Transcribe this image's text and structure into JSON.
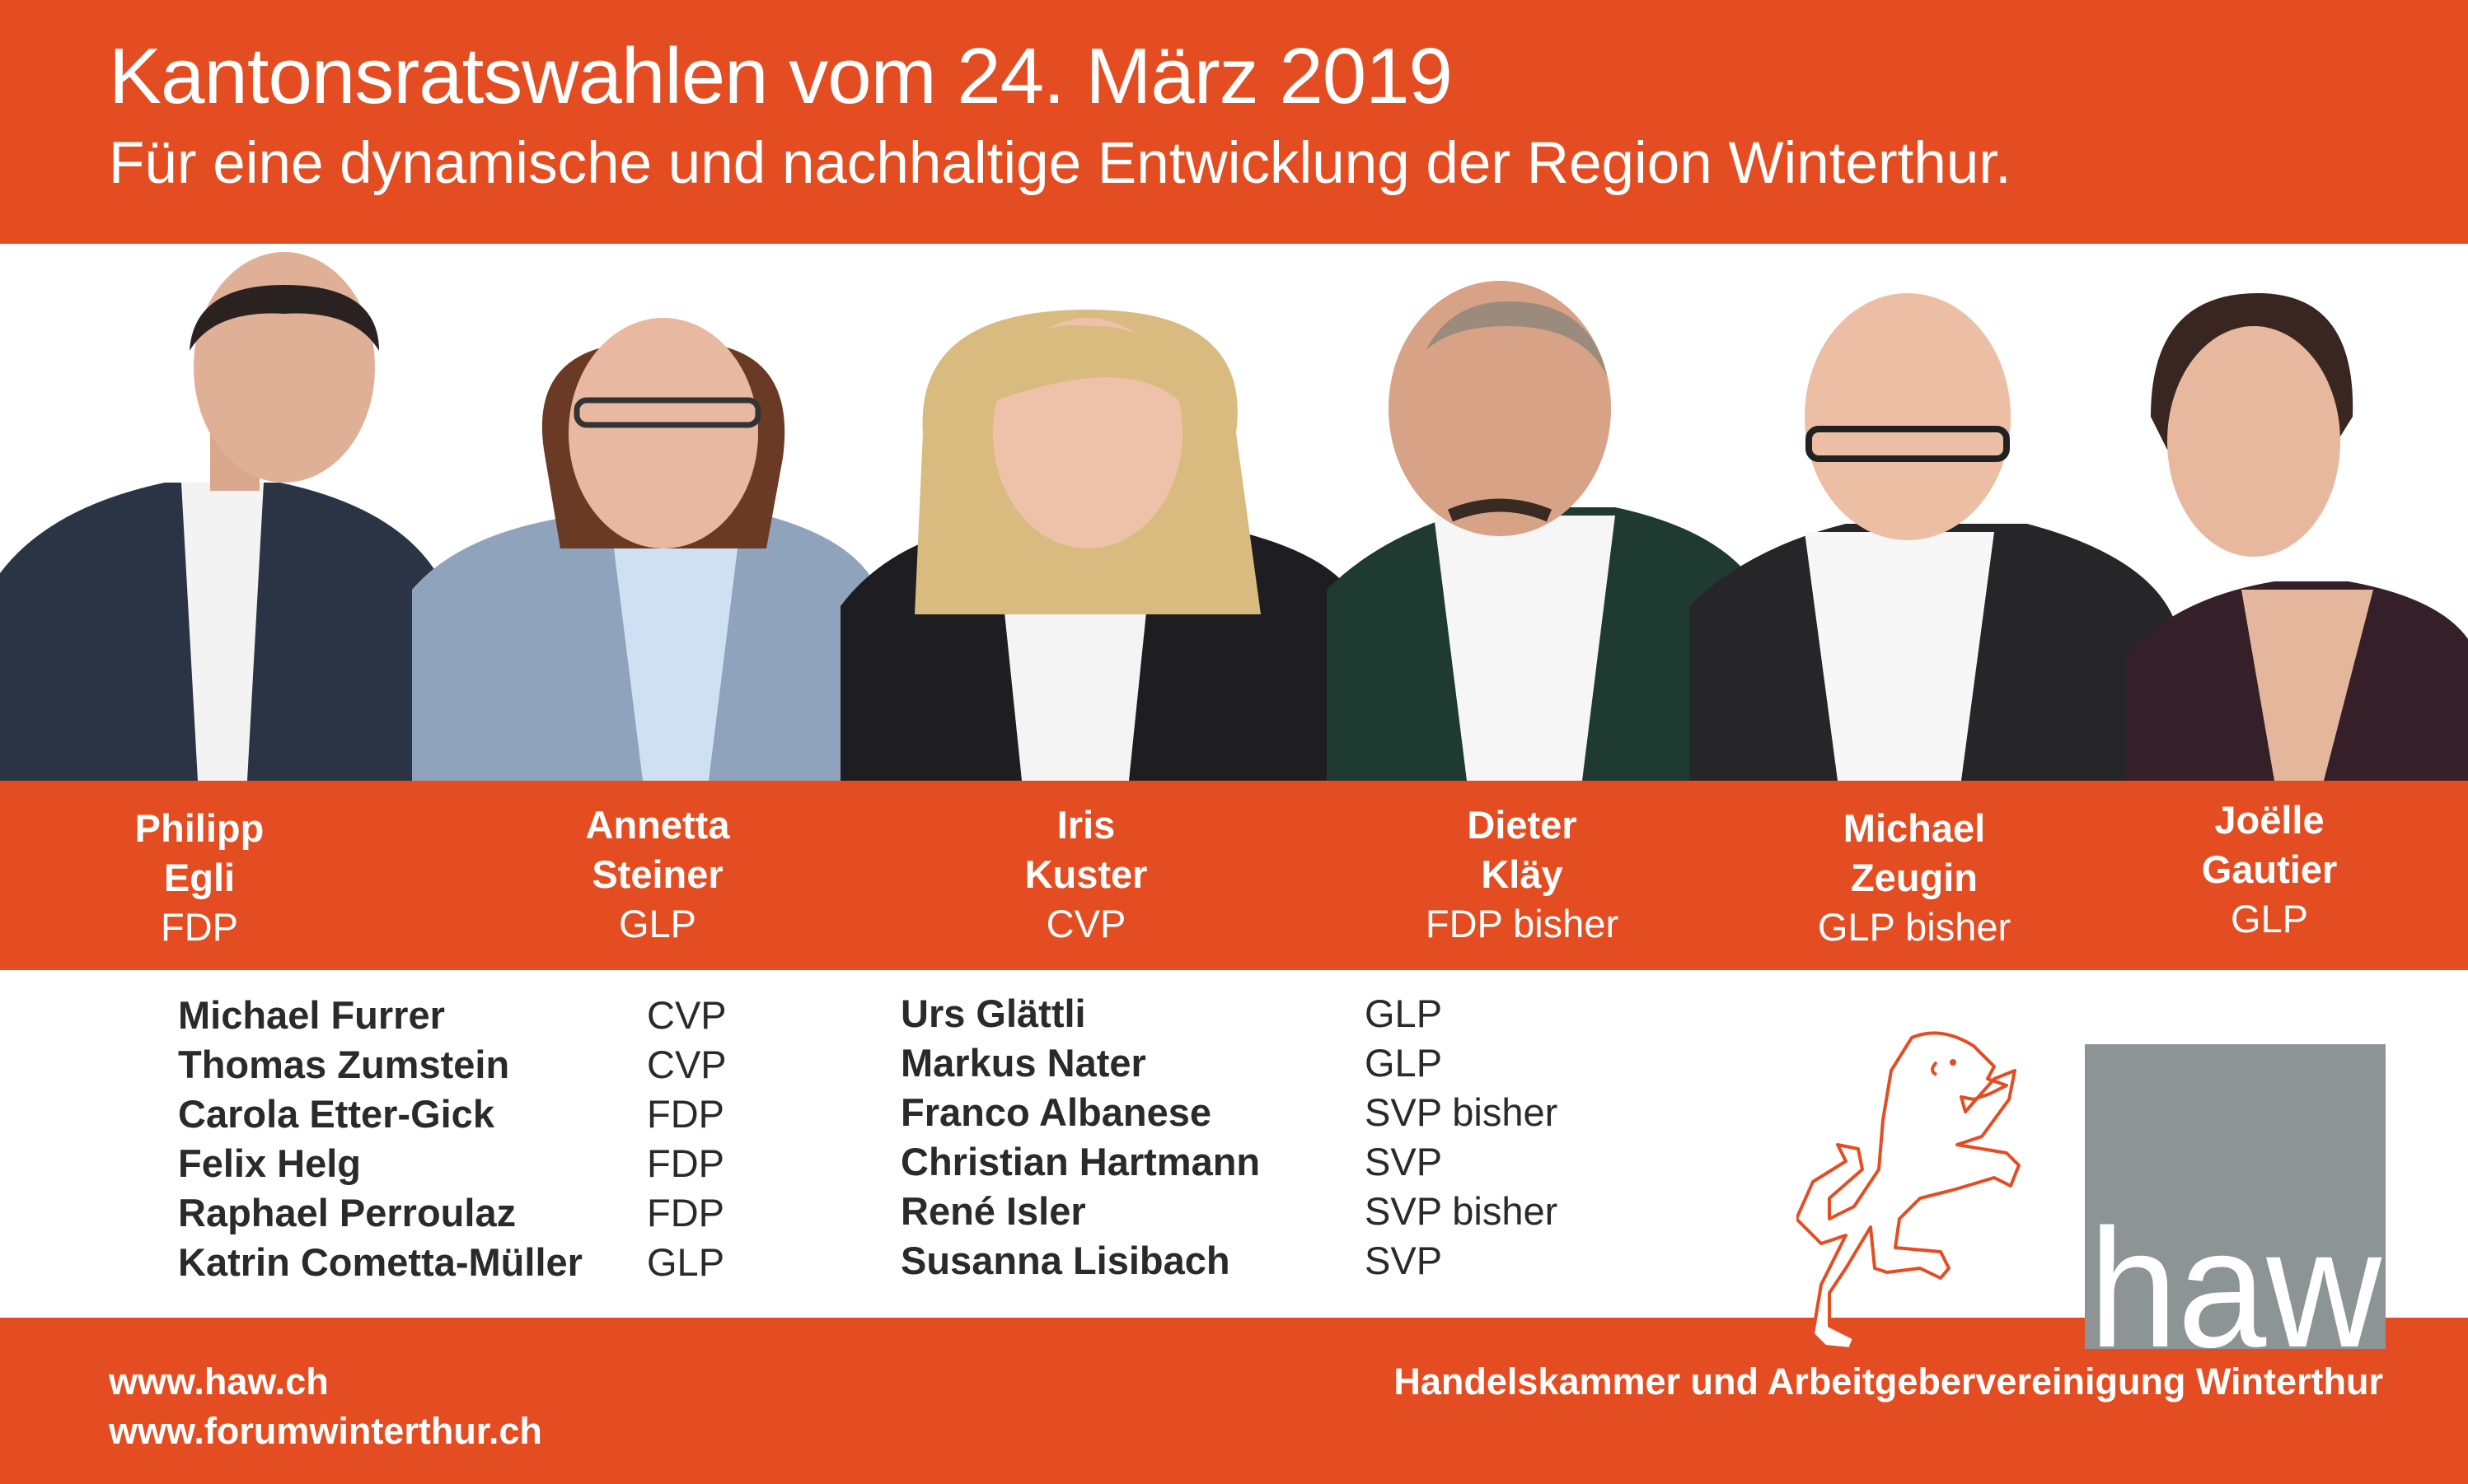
{
  "header": {
    "title": "Kantonsratswahlen vom 24. März 2019",
    "subtitle": "Für eine dynamische und nachhaltige Entwicklung der Region Winterthur."
  },
  "colors": {
    "brand_orange": "#E44D22",
    "logo_grey": "#8C9496",
    "text_dark": "#2a2a2a"
  },
  "candidates": [
    {
      "first": "Philipp",
      "last": "Egli",
      "party": "FDP"
    },
    {
      "first": "Annetta",
      "last": "Steiner",
      "party": "GLP"
    },
    {
      "first": "Iris",
      "last": "Kuster",
      "party": "CVP"
    },
    {
      "first": "Dieter",
      "last": "Kläy",
      "party": "FDP bisher"
    },
    {
      "first": "Michael",
      "last": "Zeugin",
      "party": "GLP bisher"
    },
    {
      "first": "Joëlle",
      "last": "Gautier",
      "party": "GLP"
    }
  ],
  "list": {
    "left": [
      {
        "name": "Michael Furrer",
        "party": "CVP"
      },
      {
        "name": "Thomas Zumstein",
        "party": "CVP"
      },
      {
        "name": "Carola Etter-Gick",
        "party": "FDP"
      },
      {
        "name": "Felix Helg",
        "party": "FDP"
      },
      {
        "name": "Raphael Perroulaz",
        "party": "FDP"
      },
      {
        "name": "Katrin Cometta-Müller",
        "party": "GLP"
      }
    ],
    "right": [
      {
        "name": "Urs Glättli",
        "party": "GLP"
      },
      {
        "name": "Markus Nater",
        "party": "GLP"
      },
      {
        "name": "Franco Albanese",
        "party": "SVP bisher"
      },
      {
        "name": "Christian Hartmann",
        "party": "SVP"
      },
      {
        "name": "René Isler",
        "party": "SVP bisher"
      },
      {
        "name": "Susanna Lisibach",
        "party": "SVP"
      }
    ]
  },
  "logo": {
    "text": "haw"
  },
  "footer": {
    "link1": "www.haw.ch",
    "link2": "www.forumwinterthur.ch",
    "organization": "Handelskammer und Arbeitgebervereinigung Winterthur"
  }
}
